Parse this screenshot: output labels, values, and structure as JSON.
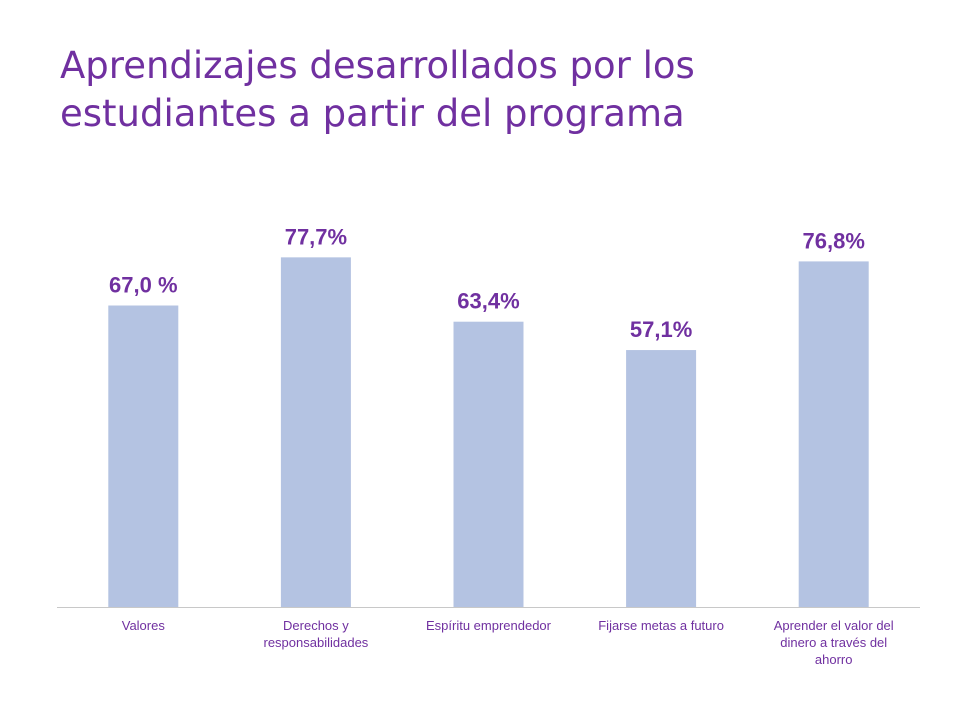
{
  "title": "Aprendizajes desarrollados por los estudiantes a partir del programa",
  "colors": {
    "bar": "#b4c3e2",
    "text": "#7030a0",
    "axis": "#c8c8c8"
  },
  "chart_data": {
    "type": "bar",
    "title": "Aprendizajes desarrollados por los estudiantes a partir del programa",
    "categories": [
      [
        "Valores"
      ],
      [
        "Derechos y",
        "responsabilidades"
      ],
      [
        "Espíritu emprendedor"
      ],
      [
        "Fijarse metas a futuro"
      ],
      [
        "Aprender el valor del",
        "dinero a través del",
        "ahorro"
      ]
    ],
    "values": [
      67.0,
      77.7,
      63.4,
      57.1,
      76.8
    ],
    "data_labels": [
      "67,0 %",
      "77,7%",
      "63,4%",
      "57,1%",
      "76,8%"
    ],
    "unit": "%",
    "ylim": [
      0,
      100
    ],
    "grid": false,
    "legend": "none"
  }
}
